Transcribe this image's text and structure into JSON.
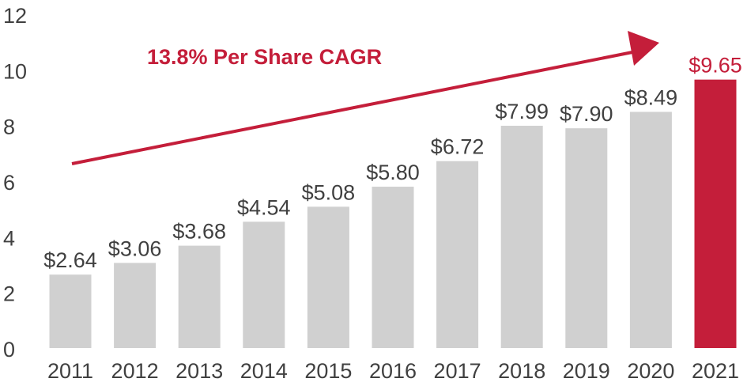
{
  "chart_data": {
    "type": "bar",
    "title": "",
    "xlabel": "",
    "ylabel": "",
    "categories": [
      "2011",
      "2012",
      "2013",
      "2014",
      "2015",
      "2016",
      "2017",
      "2018",
      "2019",
      "2020",
      "2021"
    ],
    "values": [
      2.64,
      3.06,
      3.68,
      4.54,
      5.08,
      5.8,
      6.72,
      7.99,
      7.9,
      8.49,
      9.65
    ],
    "data_labels": [
      "$2.64",
      "$3.06",
      "$3.68",
      "$4.54",
      "$5.08",
      "$5.80",
      "$6.72",
      "$7.99",
      "$7.90",
      "$8.49",
      "$9.65"
    ],
    "ylim": [
      0,
      12
    ],
    "yticks": [
      0,
      2,
      4,
      6,
      8,
      10,
      12
    ],
    "grid": false,
    "highlight_index": 10,
    "annotation": {
      "text": "13.8% Per Share CAGR",
      "arrow": true
    },
    "colors": {
      "bar": "#d0d0d0",
      "highlight": "#c41e3a",
      "text": "#404040",
      "accent": "#c41e3a"
    }
  }
}
